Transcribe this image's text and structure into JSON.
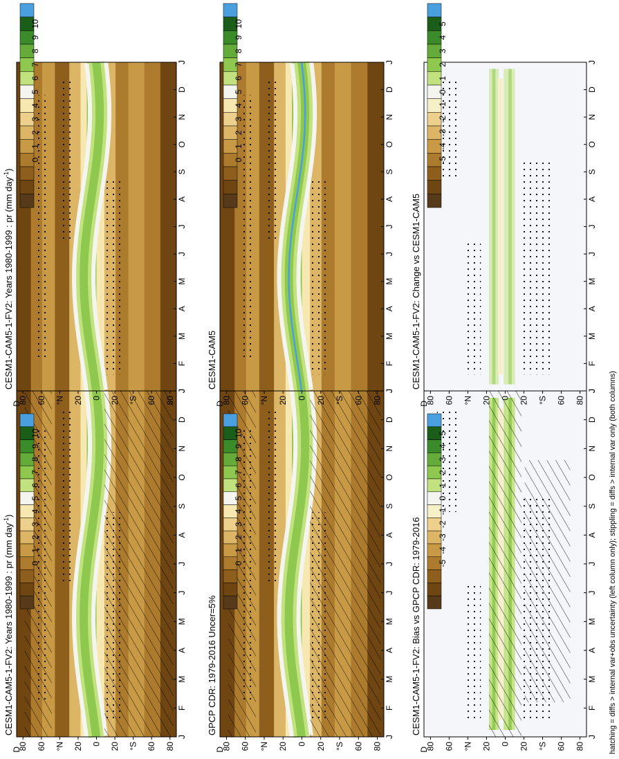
{
  "footnote": "hatching = diffs > internal var+obs uncertainty (left column only); stippling = diffs > internal var only (both columns)",
  "chart_data": [
    {
      "id": "p1",
      "type": "heatmap",
      "variant": "abs",
      "title_main": "CESM1-CAM5-1-FV2: Years 1980-1999 : pr (mm day",
      "title_sup": "-1",
      "title_tail": ")",
      "x": [
        "J",
        "F",
        "M",
        "A",
        "M",
        "J",
        "J",
        "A",
        "S",
        "O",
        "N",
        "D",
        "J"
      ],
      "y_ticks": [
        "80",
        "60",
        "°N",
        "20",
        "0",
        "20",
        "°S",
        "60",
        "80"
      ],
      "y_end": "D",
      "colorbar": [
        "10",
        "9",
        "8",
        "7",
        "6",
        "5",
        "4",
        "3",
        "2",
        "1",
        "0"
      ],
      "hatch": true,
      "stipple": true
    },
    {
      "id": "p2",
      "type": "heatmap",
      "variant": "abs",
      "title_main": "CESM1-CAM5-1-FV2: Years 1980-1999 : pr (mm day",
      "title_sup": "-1",
      "title_tail": ")",
      "x": [
        "J",
        "F",
        "M",
        "A",
        "M",
        "J",
        "J",
        "A",
        "S",
        "O",
        "N",
        "D",
        "J"
      ],
      "y_ticks": [
        "80",
        "60",
        "°N",
        "20",
        "0",
        "20",
        "°S",
        "60",
        "80"
      ],
      "y_end": "D",
      "colorbar": [
        "10",
        "9",
        "8",
        "7",
        "6",
        "5",
        "4",
        "3",
        "2",
        "1",
        "0"
      ],
      "hatch": false,
      "stipple": true
    },
    {
      "id": "p3",
      "type": "heatmap",
      "variant": "abs",
      "title_main": "GPCP CDR: 1979-2016 Uncer=5%",
      "title_sup": "",
      "title_tail": "",
      "x": [
        "J",
        "F",
        "M",
        "A",
        "M",
        "J",
        "J",
        "A",
        "S",
        "O",
        "N",
        "D",
        "J"
      ],
      "y_ticks": [
        "80",
        "60",
        "°N",
        "20",
        "0",
        "20",
        "°S",
        "60",
        "80"
      ],
      "y_end": "D",
      "colorbar": [
        "10",
        "9",
        "8",
        "7",
        "6",
        "5",
        "4",
        "3",
        "2",
        "1",
        "0"
      ],
      "hatch": true,
      "stipple": true
    },
    {
      "id": "p4",
      "type": "heatmap",
      "variant": "abs",
      "title_main": "CESM1-CAM5",
      "title_sup": "",
      "title_tail": "",
      "x": [
        "J",
        "F",
        "M",
        "A",
        "M",
        "J",
        "J",
        "A",
        "S",
        "O",
        "N",
        "D",
        "J"
      ],
      "y_ticks": [
        "80",
        "60",
        "°N",
        "20",
        "0",
        "20",
        "°S",
        "60",
        "80"
      ],
      "y_end": "D",
      "colorbar": [
        "10",
        "9",
        "8",
        "7",
        "6",
        "5",
        "4",
        "3",
        "2",
        "1",
        "0"
      ],
      "hatch": false,
      "stipple": true
    },
    {
      "id": "p5",
      "type": "heatmap",
      "variant": "diff",
      "title_main": "CESM1-CAM5-1-FV2: Bias vs GPCP CDR: 1979-2016",
      "title_sup": "",
      "title_tail": "",
      "x": [
        "J",
        "F",
        "M",
        "A",
        "M",
        "J",
        "J",
        "A",
        "S",
        "O",
        "N",
        "D",
        "J"
      ],
      "y_ticks": [
        "80",
        "60",
        "°N",
        "20",
        "0",
        "20",
        "°S",
        "60",
        "80"
      ],
      "y_end": "D",
      "colorbar": [
        "5",
        "4",
        "3",
        "2",
        "1",
        "0",
        "-1",
        "-2",
        "-3",
        "-4",
        "-5"
      ],
      "hatch": true,
      "stipple": true
    },
    {
      "id": "p6",
      "type": "heatmap",
      "variant": "diff",
      "title_main": "CESM1-CAM5-1-FV2: Change vs CESM1-CAM5",
      "title_sup": "",
      "title_tail": "",
      "x": [
        "J",
        "F",
        "M",
        "A",
        "M",
        "J",
        "J",
        "A",
        "S",
        "O",
        "N",
        "D",
        "J"
      ],
      "y_ticks": [
        "80",
        "60",
        "°N",
        "20",
        "0",
        "20",
        "°S",
        "60",
        "80"
      ],
      "y_end": "D",
      "colorbar": [
        "5",
        "4",
        "3",
        "2",
        "1",
        "0",
        "-1",
        "-2",
        "-3",
        "-4",
        "-5"
      ],
      "hatch": false,
      "stipple": true
    }
  ],
  "colors": {
    "abs_scale": [
      "#4aa0df",
      "#1a5e1a",
      "#3b8b2a",
      "#64ab3a",
      "#8ec84f",
      "#c2e27f",
      "#f5f5f0",
      "#f6e8b0",
      "#ecd08c",
      "#dcb566",
      "#c89a45",
      "#ad7b2e",
      "#8e5e1c",
      "#6f4612",
      "#573a1a"
    ],
    "diff_scale": [
      "#4aa0df",
      "#1a5e1a",
      "#3b8b2a",
      "#64ab3a",
      "#8ec84f",
      "#c2e27f",
      "#f5f5f0",
      "#f6f0c8",
      "#ecd08c",
      "#dcb566",
      "#c89a45",
      "#ad7b2e",
      "#8e5e1c",
      "#6f4612",
      "#573a1a"
    ],
    "diff_background": "#f4f6fa"
  }
}
